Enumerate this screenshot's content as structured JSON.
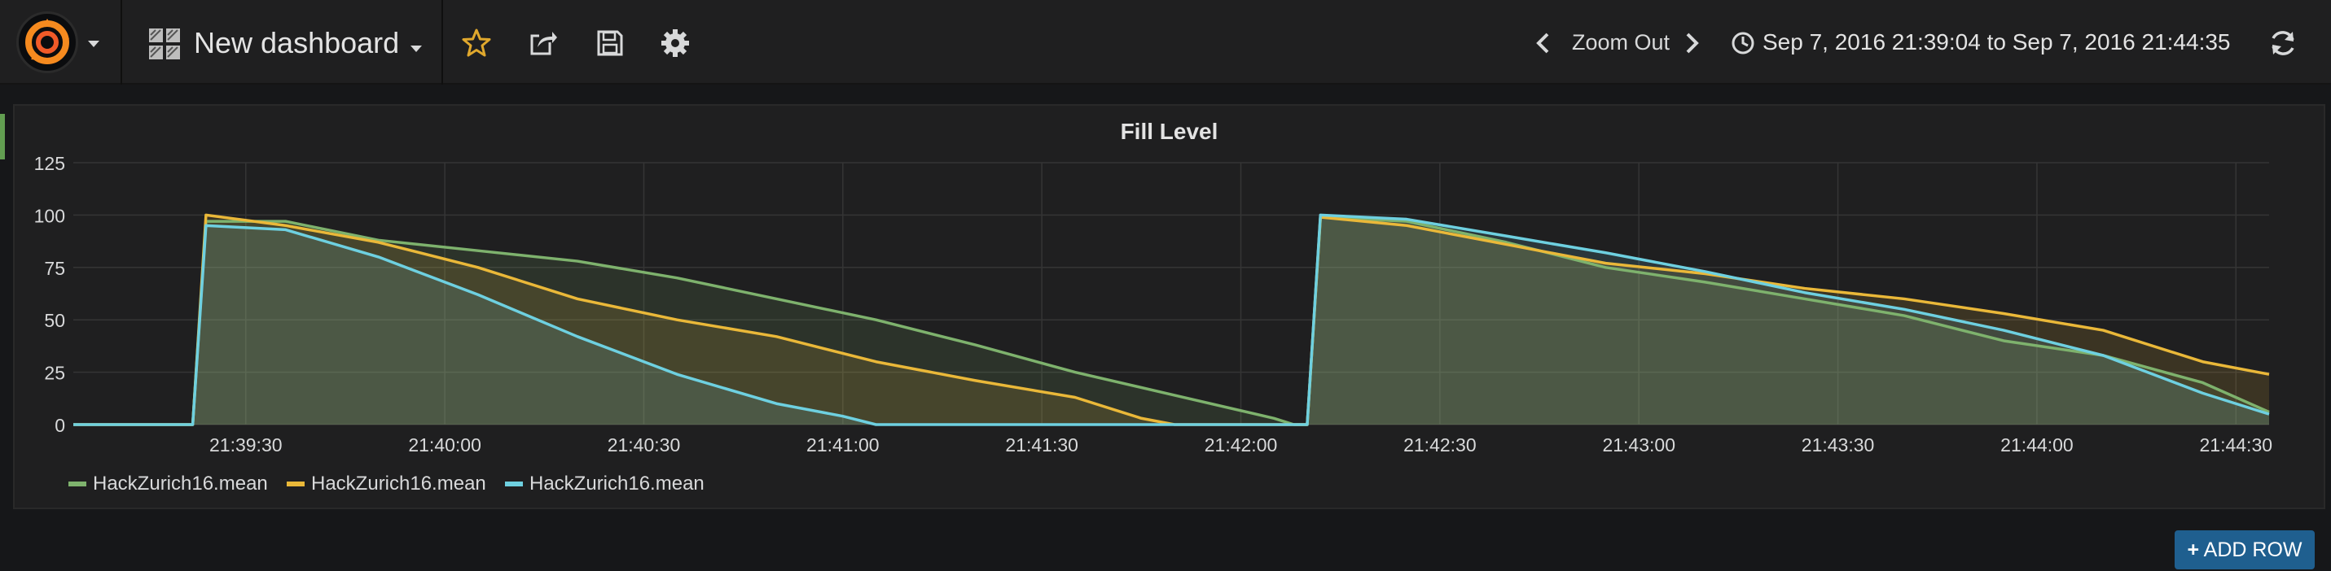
{
  "navbar": {
    "dashboard_title": "New dashboard",
    "zoom_out_label": "Zoom Out",
    "time_range": "Sep 7, 2016 21:39:04 to Sep 7, 2016 21:44:35"
  },
  "icons": {
    "logo": "grafana-logo-icon",
    "dashboard": "dashboard-grid-icon",
    "star": "star-icon",
    "share": "share-icon",
    "save": "save-icon",
    "settings": "gear-icon",
    "prev": "chevron-left-icon",
    "next": "chevron-right-icon",
    "clock": "clock-icon",
    "refresh": "refresh-icon"
  },
  "colors": {
    "green": "#7eb26d",
    "yellow": "#eab839",
    "cyan": "#6ed0e0",
    "accent_star": "#e0a82d",
    "add_row": "#1f5f8f"
  },
  "add_row_label": "ADD ROW",
  "chart_data": {
    "type": "line",
    "title": "Fill Level",
    "x_range": [
      "21:39:04",
      "21:44:35"
    ],
    "ylim": [
      0,
      125
    ],
    "y_ticks": [
      "0",
      "25",
      "50",
      "75",
      "100",
      "125"
    ],
    "x_ticks": [
      "21:39:30",
      "21:40:00",
      "21:40:30",
      "21:41:00",
      "21:41:30",
      "21:42:00",
      "21:42:30",
      "21:43:00",
      "21:43:30",
      "21:44:00",
      "21:44:30"
    ],
    "grid": true,
    "fill": true,
    "legend_position": "bottom-left",
    "series": [
      {
        "name": "HackZurich16.mean",
        "color": "#7eb26d",
        "points": [
          [
            "21:39:04",
            0
          ],
          [
            "21:39:22",
            0
          ],
          [
            "21:39:24",
            97
          ],
          [
            "21:39:36",
            97
          ],
          [
            "21:39:50",
            88
          ],
          [
            "21:40:05",
            83
          ],
          [
            "21:40:20",
            78
          ],
          [
            "21:40:35",
            70
          ],
          [
            "21:40:50",
            60
          ],
          [
            "21:41:05",
            50
          ],
          [
            "21:41:20",
            38
          ],
          [
            "21:41:35",
            25
          ],
          [
            "21:41:50",
            14
          ],
          [
            "21:42:05",
            3
          ],
          [
            "21:42:08",
            0
          ],
          [
            "21:42:10",
            0
          ],
          [
            "21:42:12",
            99
          ],
          [
            "21:42:25",
            97
          ],
          [
            "21:42:40",
            87
          ],
          [
            "21:42:55",
            75
          ],
          [
            "21:43:10",
            68
          ],
          [
            "21:43:25",
            60
          ],
          [
            "21:43:40",
            52
          ],
          [
            "21:43:55",
            40
          ],
          [
            "21:44:10",
            33
          ],
          [
            "21:44:25",
            20
          ],
          [
            "21:44:35",
            6
          ]
        ]
      },
      {
        "name": "HackZurich16.mean",
        "color": "#eab839",
        "points": [
          [
            "21:39:04",
            0
          ],
          [
            "21:39:22",
            0
          ],
          [
            "21:39:24",
            100
          ],
          [
            "21:39:36",
            95
          ],
          [
            "21:39:50",
            87
          ],
          [
            "21:40:05",
            75
          ],
          [
            "21:40:20",
            60
          ],
          [
            "21:40:35",
            50
          ],
          [
            "21:40:50",
            42
          ],
          [
            "21:41:05",
            30
          ],
          [
            "21:41:20",
            21
          ],
          [
            "21:41:35",
            13
          ],
          [
            "21:41:45",
            3
          ],
          [
            "21:41:50",
            0
          ],
          [
            "21:42:10",
            0
          ],
          [
            "21:42:12",
            99
          ],
          [
            "21:42:25",
            95
          ],
          [
            "21:42:40",
            86
          ],
          [
            "21:42:55",
            77
          ],
          [
            "21:43:10",
            72
          ],
          [
            "21:43:25",
            65
          ],
          [
            "21:43:40",
            60
          ],
          [
            "21:43:55",
            53
          ],
          [
            "21:44:10",
            45
          ],
          [
            "21:44:25",
            30
          ],
          [
            "21:44:35",
            24
          ]
        ]
      },
      {
        "name": "HackZurich16.mean",
        "color": "#6ed0e0",
        "points": [
          [
            "21:39:04",
            0
          ],
          [
            "21:39:22",
            0
          ],
          [
            "21:39:24",
            95
          ],
          [
            "21:39:36",
            93
          ],
          [
            "21:39:50",
            80
          ],
          [
            "21:40:05",
            62
          ],
          [
            "21:40:20",
            42
          ],
          [
            "21:40:35",
            24
          ],
          [
            "21:40:50",
            10
          ],
          [
            "21:41:00",
            4
          ],
          [
            "21:41:05",
            0
          ],
          [
            "21:42:10",
            0
          ],
          [
            "21:42:12",
            100
          ],
          [
            "21:42:25",
            98
          ],
          [
            "21:42:40",
            90
          ],
          [
            "21:42:55",
            82
          ],
          [
            "21:43:10",
            73
          ],
          [
            "21:43:25",
            63
          ],
          [
            "21:43:40",
            55
          ],
          [
            "21:43:55",
            45
          ],
          [
            "21:44:10",
            33
          ],
          [
            "21:44:25",
            15
          ],
          [
            "21:44:35",
            5
          ]
        ]
      }
    ]
  }
}
